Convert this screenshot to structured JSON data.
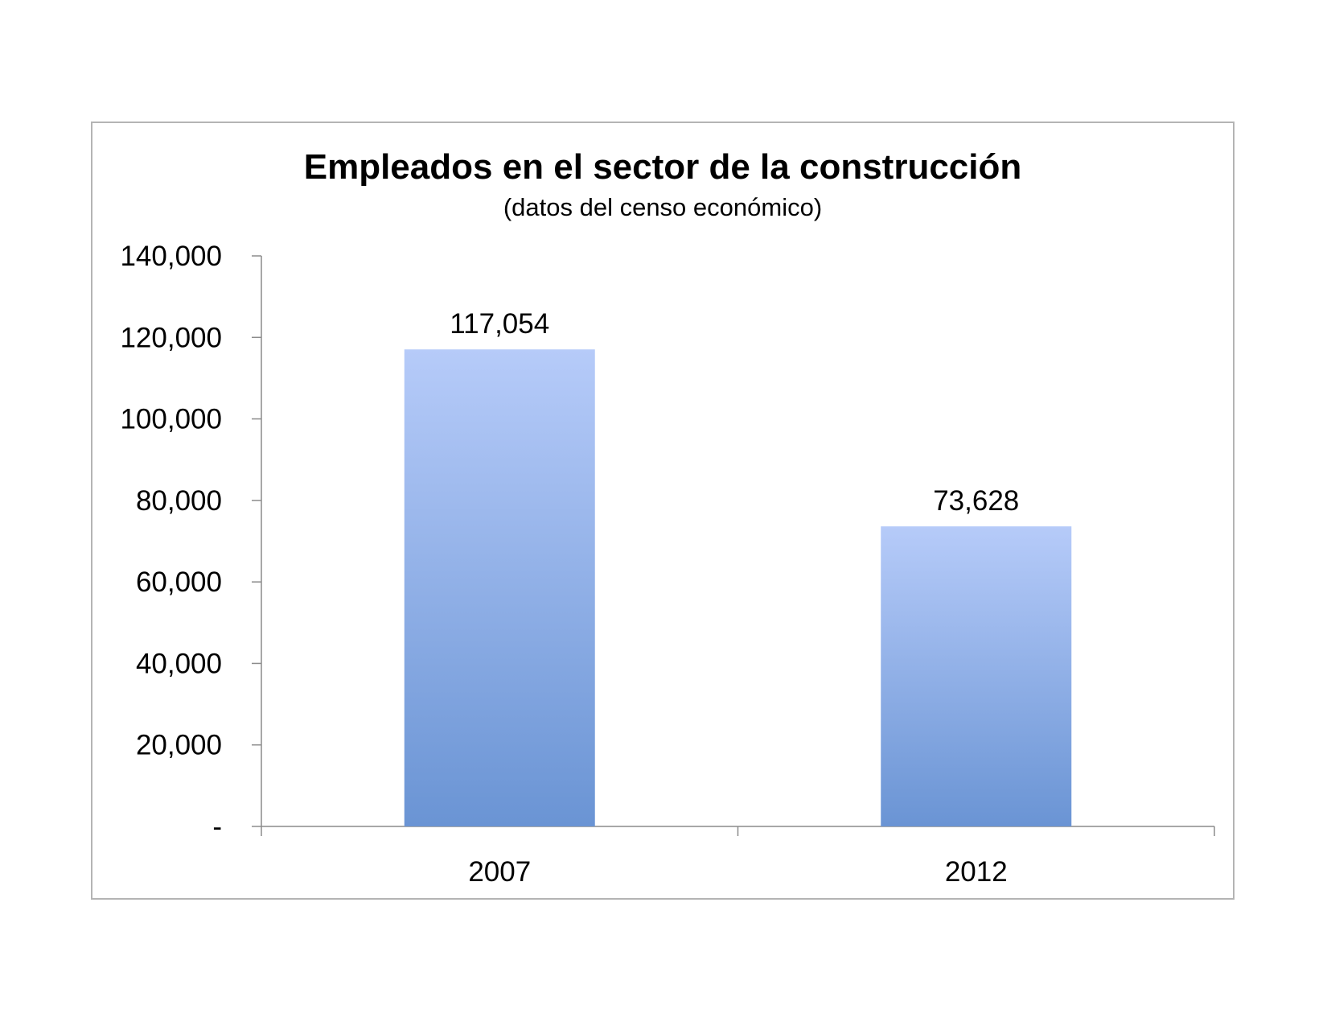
{
  "chart_data": {
    "type": "bar",
    "title": "Empleados en el sector de la construcción",
    "subtitle": "(datos del censo económico)",
    "categories": [
      "2007",
      "2012"
    ],
    "values": [
      117054,
      73628
    ],
    "value_labels": [
      "117,054",
      "73,628"
    ],
    "ylim": [
      0,
      140000
    ],
    "yticks": [
      0,
      20000,
      40000,
      60000,
      80000,
      100000,
      120000,
      140000
    ],
    "ytick_labels": [
      "-",
      "20,000",
      "40,000",
      "60,000",
      "80,000",
      "100,000",
      "120,000",
      "140,000"
    ],
    "xlabel": "",
    "ylabel": "",
    "grid": false,
    "legend": "none",
    "colors": {
      "bar_top": "#b6cbf9",
      "bar_bottom": "#6a94d4",
      "axis": "#8c8c8c",
      "frame": "#b4b4b4"
    }
  }
}
